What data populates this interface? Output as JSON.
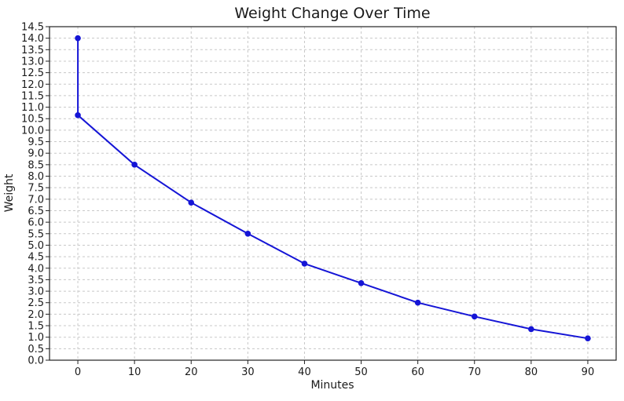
{
  "chart_data": {
    "type": "line",
    "title": "Weight Change Over Time",
    "xlabel": "Minutes",
    "ylabel": "Weight",
    "xlim": [
      -5,
      95
    ],
    "ylim": [
      0,
      14.5
    ],
    "x_ticks": [
      0,
      10,
      20,
      30,
      40,
      50,
      60,
      70,
      80,
      90
    ],
    "y_ticks": [
      0.0,
      0.5,
      1.0,
      1.5,
      2.0,
      2.5,
      3.0,
      3.5,
      4.0,
      4.5,
      5.0,
      5.5,
      6.0,
      6.5,
      7.0,
      7.5,
      8.0,
      8.5,
      9.0,
      9.5,
      10.0,
      10.5,
      11.0,
      11.5,
      12.0,
      12.5,
      13.0,
      13.5,
      14.0,
      14.5
    ],
    "grid": true,
    "series": [
      {
        "color": "#1515d6",
        "x": [
          0,
          0,
          10,
          20,
          30,
          40,
          50,
          60,
          70,
          80,
          90
        ],
        "y": [
          14.0,
          10.65,
          8.5,
          6.85,
          5.5,
          4.2,
          3.35,
          2.5,
          1.9,
          1.35,
          0.95
        ]
      }
    ]
  }
}
